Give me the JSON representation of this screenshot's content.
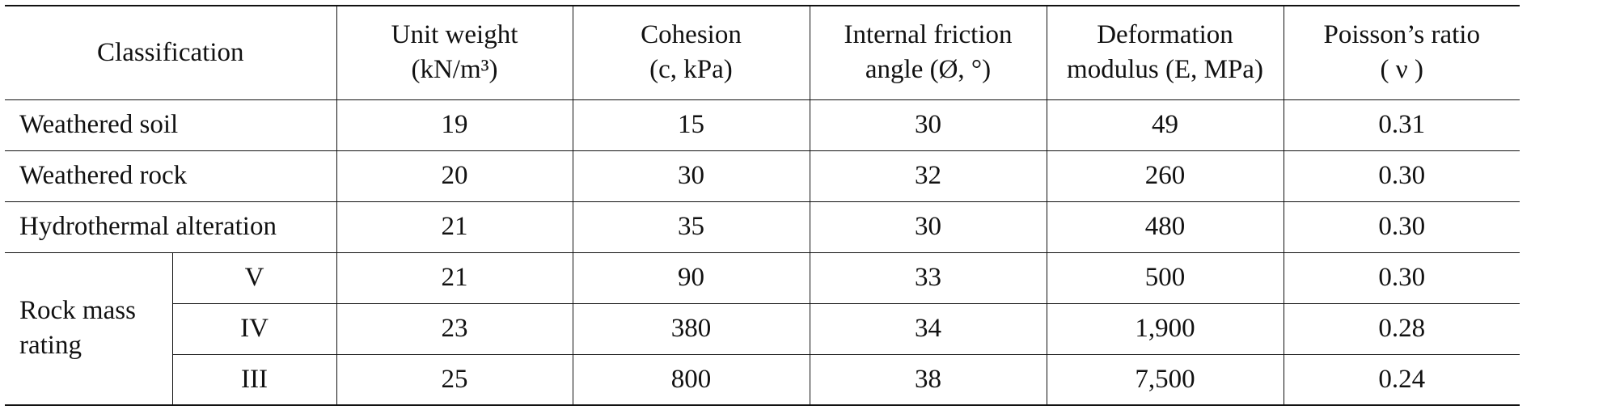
{
  "table": {
    "header": [
      [
        "Classification"
      ],
      [
        "Unit weight",
        "(kN/m³)"
      ],
      [
        "Cohesion",
        "(c, kPa)"
      ],
      [
        "Internal friction",
        "angle (Ø, °)"
      ],
      [
        "Deformation",
        "modulus (E, MPa)"
      ],
      [
        "Poisson’s ratio",
        "( ν )"
      ]
    ],
    "rows": [
      {
        "label": "Weathered soil",
        "cells": [
          "19",
          "15",
          "30",
          "49",
          "0.31"
        ]
      },
      {
        "label": "Weathered rock",
        "cells": [
          "20",
          "30",
          "32",
          "260",
          "0.30"
        ]
      },
      {
        "label": "Hydrothermal alteration",
        "cells": [
          "21",
          "35",
          "30",
          "480",
          "0.30"
        ]
      }
    ],
    "group": {
      "label": "Rock mass rating",
      "rows": [
        {
          "label": "V",
          "cells": [
            "21",
            "90",
            "33",
            "500",
            "0.30"
          ]
        },
        {
          "label": "IV",
          "cells": [
            "23",
            "380",
            "34",
            "1,900",
            "0.28"
          ]
        },
        {
          "label": "III",
          "cells": [
            "25",
            "800",
            "38",
            "7,500",
            "0.24"
          ]
        }
      ]
    }
  }
}
